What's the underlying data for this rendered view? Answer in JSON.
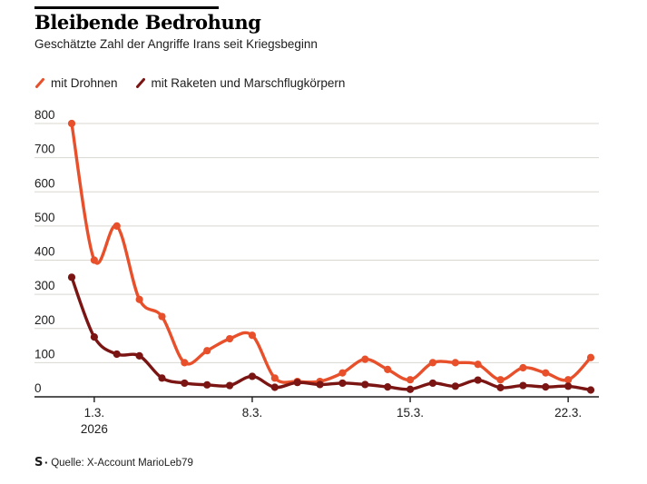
{
  "header": {
    "title": "Bleibende Bedrohung",
    "subtitle": "Geschätzte Zahl der Angriffe Irans seit Kriegsbeginn"
  },
  "footer": {
    "logo_letter": "S",
    "source": "Quelle: X-Account MarioLeb79"
  },
  "colors": {
    "drones": "#e8502b",
    "rockets": "#7a1513",
    "grid": "#d9d7d0",
    "axis": "#1d1d1d",
    "background": "#ffffff"
  },
  "chart_data": {
    "type": "line",
    "title": "Bleibende Bedrohung",
    "subtitle": "Geschätzte Zahl der Angriffe Irans seit Kriegsbeginn",
    "categories": [
      "28.2.",
      "1.3.",
      "2.3.",
      "3.3.",
      "4.3.",
      "5.3.",
      "6.3.",
      "7.3.",
      "8.3.",
      "9.3.",
      "10.3.",
      "11.3.",
      "12.3.",
      "13.3.",
      "14.3.",
      "15.3.",
      "16.3.",
      "17.3.",
      "18.3.",
      "19.3.",
      "20.3.",
      "21.3.",
      "22.3.",
      "23.3."
    ],
    "series": [
      {
        "name": "mit Drohnen",
        "color": "#e8502b",
        "values": [
          800,
          400,
          500,
          285,
          235,
          100,
          135,
          170,
          180,
          55,
          45,
          45,
          70,
          110,
          80,
          50,
          100,
          100,
          95,
          50,
          85,
          70,
          50,
          115
        ]
      },
      {
        "name": "mit Raketen und Marschflugkörpern",
        "color": "#7a1513",
        "values": [
          350,
          175,
          125,
          120,
          55,
          40,
          35,
          33,
          60,
          28,
          42,
          36,
          40,
          36,
          29,
          22,
          40,
          31,
          49,
          27,
          33,
          29,
          31,
          20
        ]
      }
    ],
    "ylim": [
      0,
      800
    ],
    "yticks": [
      0,
      100,
      200,
      300,
      400,
      500,
      600,
      700,
      800
    ],
    "xticks": [
      {
        "index": 1,
        "label": "1.3.",
        "sublabel": "2026"
      },
      {
        "index": 8,
        "label": "8.3."
      },
      {
        "index": 15,
        "label": "15.3."
      },
      {
        "index": 22,
        "label": "22.3."
      }
    ],
    "grid": "horizontal",
    "legend_position": "top"
  }
}
